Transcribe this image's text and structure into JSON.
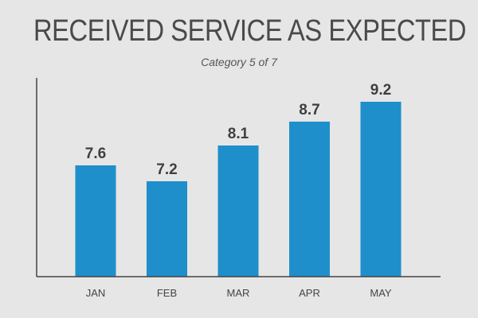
{
  "chart_data": {
    "type": "bar",
    "title": "RECEIVED SERVICE AS EXPECTED",
    "subtitle": "Category 5 of 7",
    "xlabel": "",
    "ylabel": "",
    "categories": [
      "JAN",
      "FEB",
      "MAR",
      "APR",
      "MAY"
    ],
    "values": [
      7.6,
      7.2,
      8.1,
      8.7,
      9.2
    ],
    "data_labels": [
      "7.6",
      "7.2",
      "8.1",
      "8.7",
      "9.2"
    ],
    "ylim": [
      4.8,
      9.8
    ],
    "grid": false,
    "legend": "none",
    "colors": {
      "bar": "#1f8fcb",
      "background": "#e6e6e6",
      "axis": "#444444"
    }
  }
}
